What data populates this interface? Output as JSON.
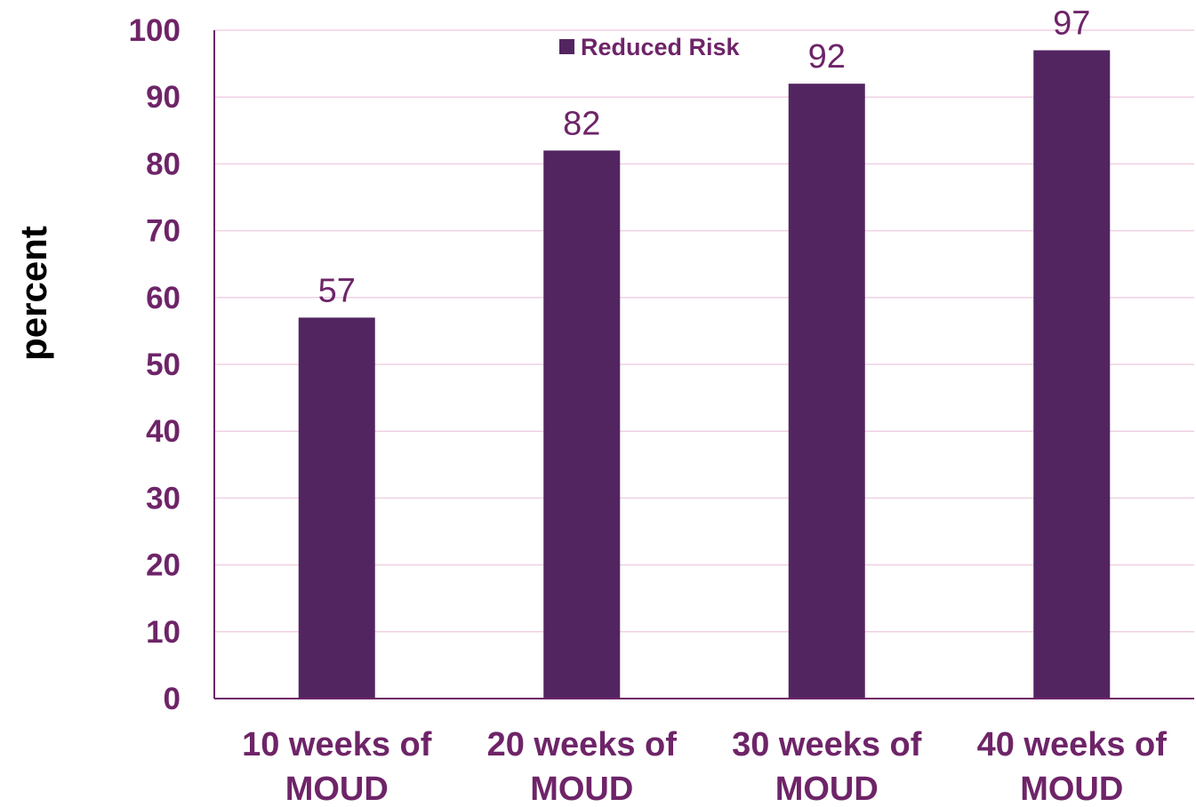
{
  "colors": {
    "bar": "#522561",
    "text": "#6E2468",
    "grid": "#F0D0E4",
    "axis": "#6E2468"
  },
  "chart_data": {
    "type": "bar",
    "categories": [
      [
        "10 weeks of",
        "MOUD"
      ],
      [
        "20 weeks of",
        "MOUD"
      ],
      [
        "30 weeks of",
        "MOUD"
      ],
      [
        "40 weeks of",
        "MOUD"
      ]
    ],
    "series": [
      {
        "name": "Reduced Risk",
        "values": [
          57,
          82,
          92,
          97
        ]
      }
    ],
    "ylabel": "percent",
    "xlabel": "",
    "ylim": [
      0,
      100
    ],
    "yticks": [
      0,
      10,
      20,
      30,
      40,
      50,
      60,
      70,
      80,
      90,
      100
    ],
    "ytick_labels": [
      "0",
      "10",
      "20",
      "30",
      "40",
      "50",
      "60",
      "70",
      "80",
      "90",
      "100"
    ],
    "data_labels": [
      "57",
      "82",
      "92",
      "97"
    ],
    "grid": true,
    "legend_position": "top-center"
  }
}
